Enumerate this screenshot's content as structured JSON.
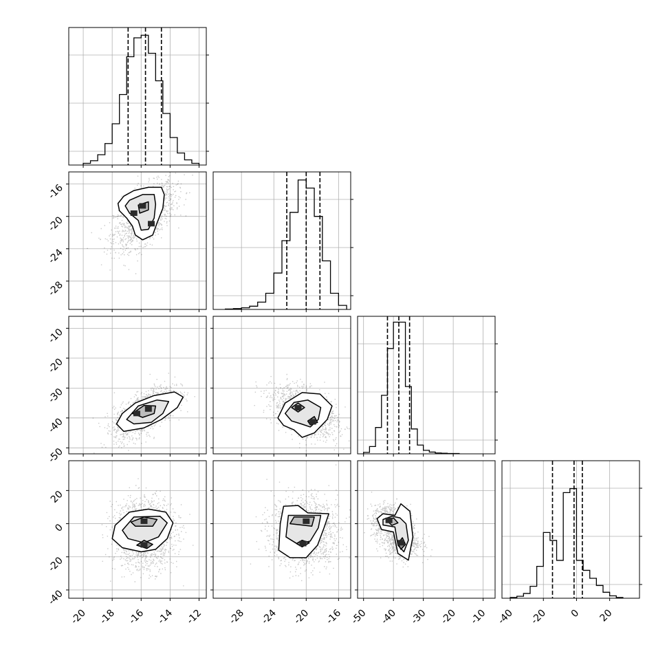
{
  "chart_data": {
    "type": "corner",
    "title": "",
    "grid": true,
    "panel_ranges": [
      [
        -21,
        -11.5
      ],
      [
        -31.5,
        -14.5
      ],
      [
        -52,
        -6
      ],
      [
        -45,
        38
      ]
    ],
    "tick_labels": [
      [
        "-20",
        "-18",
        "-16",
        "-14",
        "-12"
      ],
      [
        "-28",
        "-24",
        "-20",
        "-16"
      ],
      [
        "-50",
        "-40",
        "-30",
        "-20",
        "-10"
      ],
      [
        "-40",
        "-20",
        "0",
        "20"
      ]
    ],
    "tick_values": [
      [
        -20,
        -18,
        -16,
        -14,
        -12
      ],
      [
        -28,
        -24,
        -20,
        -16
      ],
      [
        -50,
        -40,
        -30,
        -20,
        -10
      ],
      [
        -40,
        -20,
        0,
        20
      ]
    ],
    "histograms": [
      {
        "param": 0,
        "edges": [
          -20,
          -19.5,
          -19,
          -18.5,
          -18,
          -17.5,
          -17,
          -16.5,
          -16,
          -15.5,
          -15,
          -14.5,
          -14,
          -13.5,
          -13,
          -12.5,
          -12
        ],
        "counts": [
          2,
          5,
          12,
          25,
          48,
          82,
          126,
          148,
          151,
          130,
          98,
          60,
          32,
          14,
          6,
          2
        ],
        "ymax": 160,
        "quantiles": [
          -16.9,
          -15.7,
          -14.6
        ]
      },
      {
        "param": 1,
        "edges": [
          -30,
          -29,
          -28,
          -27,
          -26,
          -25,
          -24,
          -23,
          -22,
          -21,
          -20,
          -19,
          -18,
          -17,
          -16,
          -15
        ],
        "counts": [
          1,
          2,
          4,
          8,
          18,
          40,
          90,
          170,
          240,
          320,
          300,
          230,
          120,
          40,
          10
        ],
        "ymax": 340,
        "quantiles": [
          -22.4,
          -20.0,
          -18.3
        ]
      },
      {
        "param": 2,
        "edges": [
          -50,
          -48,
          -46,
          -44,
          -42,
          -40,
          -38,
          -36,
          -34,
          -32,
          -30,
          -28,
          -26,
          -24,
          -22,
          -20,
          -18
        ],
        "counts": [
          5,
          25,
          90,
          200,
          360,
          450,
          450,
          230,
          85,
          30,
          12,
          6,
          3,
          2,
          1,
          1
        ],
        "ymax": 470,
        "quantiles": [
          -42.0,
          -38.2,
          -34.6
        ]
      },
      {
        "param": 3,
        "edges": [
          -40,
          -36,
          -32,
          -28,
          -24,
          -20,
          -16,
          -12,
          -8,
          -4,
          0,
          4,
          8,
          12,
          16,
          20,
          24,
          28
        ],
        "counts": [
          2,
          5,
          12,
          30,
          80,
          165,
          145,
          95,
          265,
          275,
          95,
          70,
          50,
          32,
          15,
          6,
          2
        ],
        "ymax": 345,
        "quantiles": [
          -14.5,
          -1.5,
          3.5
        ]
      }
    ],
    "scatter_pairs": [
      {
        "x_param": 0,
        "y_param": 1,
        "centers": [
          [
            -15.8,
            -19.8
          ]
        ],
        "sd": [
          1.05,
          2.0
        ],
        "corr": 0.58,
        "contours": [
          [
            [
              -17.2,
              -17.5
            ],
            [
              -16.5,
              -16.8
            ],
            [
              -15.5,
              -16.4
            ],
            [
              -14.6,
              -16.4
            ],
            [
              -14.4,
              -17.3
            ],
            [
              -14.5,
              -19.0
            ],
            [
              -14.9,
              -20.8
            ],
            [
              -15.2,
              -22.3
            ],
            [
              -15.9,
              -22.9
            ],
            [
              -16.4,
              -22.3
            ],
            [
              -16.6,
              -21.2
            ],
            [
              -17.0,
              -20.2
            ],
            [
              -17.5,
              -19.3
            ],
            [
              -17.6,
              -18.4
            ]
          ],
          [
            [
              -16.8,
              -18.0
            ],
            [
              -15.9,
              -17.3
            ],
            [
              -15.1,
              -17.3
            ],
            [
              -15.0,
              -18.5
            ],
            [
              -15.1,
              -20.2
            ],
            [
              -15.5,
              -21.6
            ],
            [
              -16.0,
              -21.7
            ],
            [
              -16.2,
              -20.5
            ],
            [
              -16.8,
              -19.6
            ],
            [
              -17.1,
              -18.7
            ]
          ],
          [
            [
              -16.2,
              -18.6
            ],
            [
              -15.5,
              -18.2
            ],
            [
              -15.5,
              -19.2
            ],
            [
              -16.1,
              -19.6
            ]
          ]
        ],
        "peaks": [
          [
            -15.9,
            -18.7
          ],
          [
            -16.5,
            -19.6
          ],
          [
            -15.3,
            -20.9
          ]
        ]
      },
      {
        "x_param": 0,
        "y_param": 2,
        "centers": [
          [
            -15.8,
            -38.0
          ]
        ],
        "sd": [
          1.05,
          4.2
        ],
        "corr": 0.62,
        "contours": [
          [
            [
              -17.7,
              -42.0
            ],
            [
              -17.3,
              -38.5
            ],
            [
              -16.4,
              -35.0
            ],
            [
              -15.1,
              -32.5
            ],
            [
              -13.7,
              -31.3
            ],
            [
              -13.1,
              -33.0
            ],
            [
              -13.5,
              -36.5
            ],
            [
              -14.6,
              -40.5
            ],
            [
              -15.8,
              -43.3
            ],
            [
              -17.2,
              -44.5
            ]
          ],
          [
            [
              -17.0,
              -40.5
            ],
            [
              -16.2,
              -36.0
            ],
            [
              -14.9,
              -34.0
            ],
            [
              -14.1,
              -34.5
            ],
            [
              -14.5,
              -38.5
            ],
            [
              -15.3,
              -41.5
            ],
            [
              -16.5,
              -42.0
            ]
          ],
          [
            [
              -16.6,
              -38.5
            ],
            [
              -15.8,
              -35.8
            ],
            [
              -15.0,
              -36.0
            ],
            [
              -15.1,
              -38.5
            ],
            [
              -15.9,
              -39.8
            ]
          ]
        ],
        "peaks": [
          [
            -15.5,
            -37.0
          ],
          [
            -16.3,
            -38.5
          ]
        ]
      },
      {
        "x_param": 0,
        "y_param": 3,
        "centers": [
          [
            -15.8,
            1.0
          ],
          [
            -15.8,
            -13.0
          ]
        ],
        "sd": [
          1.05,
          8.0
        ],
        "corr": 0.0,
        "contours": [
          [
            [
              -18.0,
              -9.0
            ],
            [
              -17.8,
              -1.0
            ],
            [
              -16.8,
              7.0
            ],
            [
              -15.5,
              8.8
            ],
            [
              -14.3,
              7.0
            ],
            [
              -13.8,
              0.5
            ],
            [
              -14.2,
              -9.0
            ],
            [
              -15.0,
              -15.5
            ],
            [
              -16.0,
              -17.0
            ],
            [
              -17.3,
              -14.5
            ]
          ],
          [
            [
              -17.3,
              -4.0
            ],
            [
              -16.5,
              4.0
            ],
            [
              -14.7,
              4.5
            ],
            [
              -14.2,
              0.5
            ],
            [
              -14.8,
              -8.0
            ],
            [
              -15.8,
              -11.5
            ],
            [
              -16.9,
              -9.0
            ]
          ],
          [
            [
              -16.7,
              1.0
            ],
            [
              -15.8,
              4.0
            ],
            [
              -14.9,
              2.5
            ],
            [
              -15.2,
              -1.5
            ],
            [
              -16.4,
              -1.5
            ]
          ],
          [
            [
              -16.3,
              -13.0
            ],
            [
              -15.8,
              -10.0
            ],
            [
              -15.2,
              -12.5
            ],
            [
              -15.6,
              -15.0
            ]
          ]
        ],
        "peaks": [
          [
            -15.8,
            1.5
          ],
          [
            -15.8,
            -12.8
          ]
        ]
      },
      {
        "x_param": 1,
        "y_param": 2,
        "centers": [
          [
            -20.2,
            -38.0
          ]
        ],
        "sd": [
          2.0,
          4.2
        ],
        "corr": -0.45,
        "contours": [
          [
            [
              -23.5,
              -40.0
            ],
            [
              -22.6,
              -35.0
            ],
            [
              -20.5,
              -31.5
            ],
            [
              -18.3,
              -32.0
            ],
            [
              -16.8,
              -36.0
            ],
            [
              -17.4,
              -40.5
            ],
            [
              -19.0,
              -45.0
            ],
            [
              -20.5,
              -46.5
            ],
            [
              -21.5,
              -44.0
            ],
            [
              -22.8,
              -42.5
            ]
          ],
          [
            [
              -22.6,
              -38.5
            ],
            [
              -21.5,
              -34.8
            ],
            [
              -19.8,
              -34.0
            ],
            [
              -18.2,
              -36.5
            ],
            [
              -18.5,
              -40.5
            ],
            [
              -19.5,
              -43.0
            ],
            [
              -20.6,
              -42.0
            ],
            [
              -21.8,
              -41.0
            ]
          ],
          [
            [
              -21.8,
              -36.5
            ],
            [
              -21.0,
              -35.0
            ],
            [
              -20.2,
              -36.5
            ],
            [
              -21.0,
              -38.0
            ]
          ],
          [
            [
              -19.8,
              -41.0
            ],
            [
              -19.0,
              -39.5
            ],
            [
              -18.6,
              -41.5
            ],
            [
              -19.5,
              -42.3
            ]
          ]
        ],
        "peaks": [
          [
            -19.2,
            -41.3
          ],
          [
            -21.0,
            -36.6
          ]
        ]
      },
      {
        "x_param": 1,
        "y_param": 3,
        "centers": [
          [
            -20.2,
            1.5
          ],
          [
            -20.3,
            -12.0
          ]
        ],
        "sd": [
          2.0,
          8.0
        ],
        "corr": 0.0,
        "contours": [
          [
            [
              -23.4,
              -16.0
            ],
            [
              -23.2,
              0.0
            ],
            [
              -22.8,
              10.5
            ],
            [
              -21.0,
              11.0
            ],
            [
              -19.8,
              6.5
            ],
            [
              -17.2,
              6.0
            ],
            [
              -17.8,
              -2.5
            ],
            [
              -18.6,
              -13.0
            ],
            [
              -20.0,
              -20.5
            ],
            [
              -22.0,
              -20.5
            ]
          ],
          [
            [
              -22.5,
              -8.0
            ],
            [
              -22.2,
              5.0
            ],
            [
              -18.2,
              5.0
            ],
            [
              -18.5,
              -2.5
            ],
            [
              -19.5,
              -10.5
            ],
            [
              -21.0,
              -12.5
            ]
          ],
          [
            [
              -22.0,
              0.0
            ],
            [
              -21.5,
              4.0
            ],
            [
              -19.0,
              4.0
            ],
            [
              -19.3,
              -1.5
            ]
          ],
          [
            [
              -21.2,
              -12.0
            ],
            [
              -20.5,
              -10.0
            ],
            [
              -19.6,
              -11.5
            ],
            [
              -20.5,
              -14.0
            ]
          ]
        ],
        "peaks": [
          [
            -20.0,
            1.5
          ],
          [
            -20.4,
            -12.0
          ]
        ]
      },
      {
        "x_param": 2,
        "y_param": 3,
        "centers": [
          [
            -41.5,
            1.5
          ],
          [
            -37.2,
            -10.5
          ]
        ],
        "sd": [
          3.0,
          5.0
        ],
        "corr": 0.0,
        "contours": [
          [
            [
              -45.5,
              3.0
            ],
            [
              -43.5,
              6.0
            ],
            [
              -39.5,
              5.0
            ],
            [
              -37.5,
              12.0
            ],
            [
              -34.5,
              7.5
            ],
            [
              -33.5,
              -8.0
            ],
            [
              -35.0,
              -22.0
            ],
            [
              -38.5,
              -18.0
            ],
            [
              -40.0,
              -5.0
            ],
            [
              -44.0,
              -3.5
            ]
          ],
          [
            [
              -43.5,
              2.5
            ],
            [
              -40.5,
              4.5
            ],
            [
              -37.8,
              3.5
            ],
            [
              -35.8,
              0.0
            ],
            [
              -35.0,
              -10.0
            ],
            [
              -36.5,
              -17.0
            ],
            [
              -38.5,
              -13.0
            ],
            [
              -39.5,
              -2.0
            ],
            [
              -43.5,
              -0.8
            ]
          ],
          [
            [
              -42.0,
              1.5
            ],
            [
              -40.0,
              3.5
            ],
            [
              -38.5,
              0.5
            ],
            [
              -40.5,
              -1.0
            ]
          ],
          [
            [
              -38.5,
              -12.0
            ],
            [
              -37.0,
              -8.5
            ],
            [
              -36.0,
              -12.5
            ],
            [
              -37.5,
              -15.5
            ]
          ]
        ],
        "peaks": [
          [
            -41.5,
            2.0
          ],
          [
            -37.5,
            -11.5
          ]
        ]
      }
    ],
    "colors": {
      "axes": "#000000",
      "grid": "#b0b0b0",
      "points": "#000000",
      "contour": "#000000",
      "hist": "#000000"
    }
  }
}
